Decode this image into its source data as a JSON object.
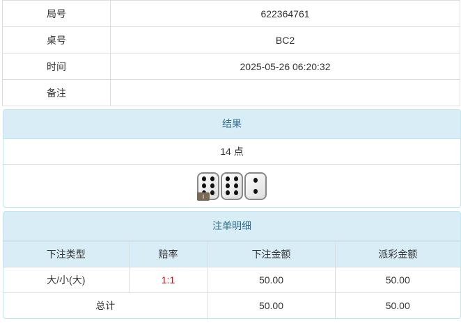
{
  "info": {
    "rows": [
      {
        "label": "局号",
        "value": "622364761"
      },
      {
        "label": "桌号",
        "value": "BC2"
      },
      {
        "label": "时间",
        "value": "2025-05-26 06:20:32"
      },
      {
        "label": "备注",
        "value": ""
      }
    ]
  },
  "result": {
    "title": "结果",
    "points": "14 点",
    "dice": [
      6,
      6,
      2
    ],
    "badge": "i"
  },
  "bets": {
    "title": "注单明细",
    "headers": [
      "下注类型",
      "赔率",
      "下注金额",
      "派彩金额"
    ],
    "rows": [
      {
        "type": "大/小(大)",
        "odds": "1:1",
        "amount": "50.00",
        "payout": "50.00"
      }
    ],
    "total": {
      "label": "总计",
      "amount": "50.00",
      "payout": "50.00"
    },
    "colors": {
      "odds": "#ee0000",
      "heading": "#d9edf7"
    }
  }
}
